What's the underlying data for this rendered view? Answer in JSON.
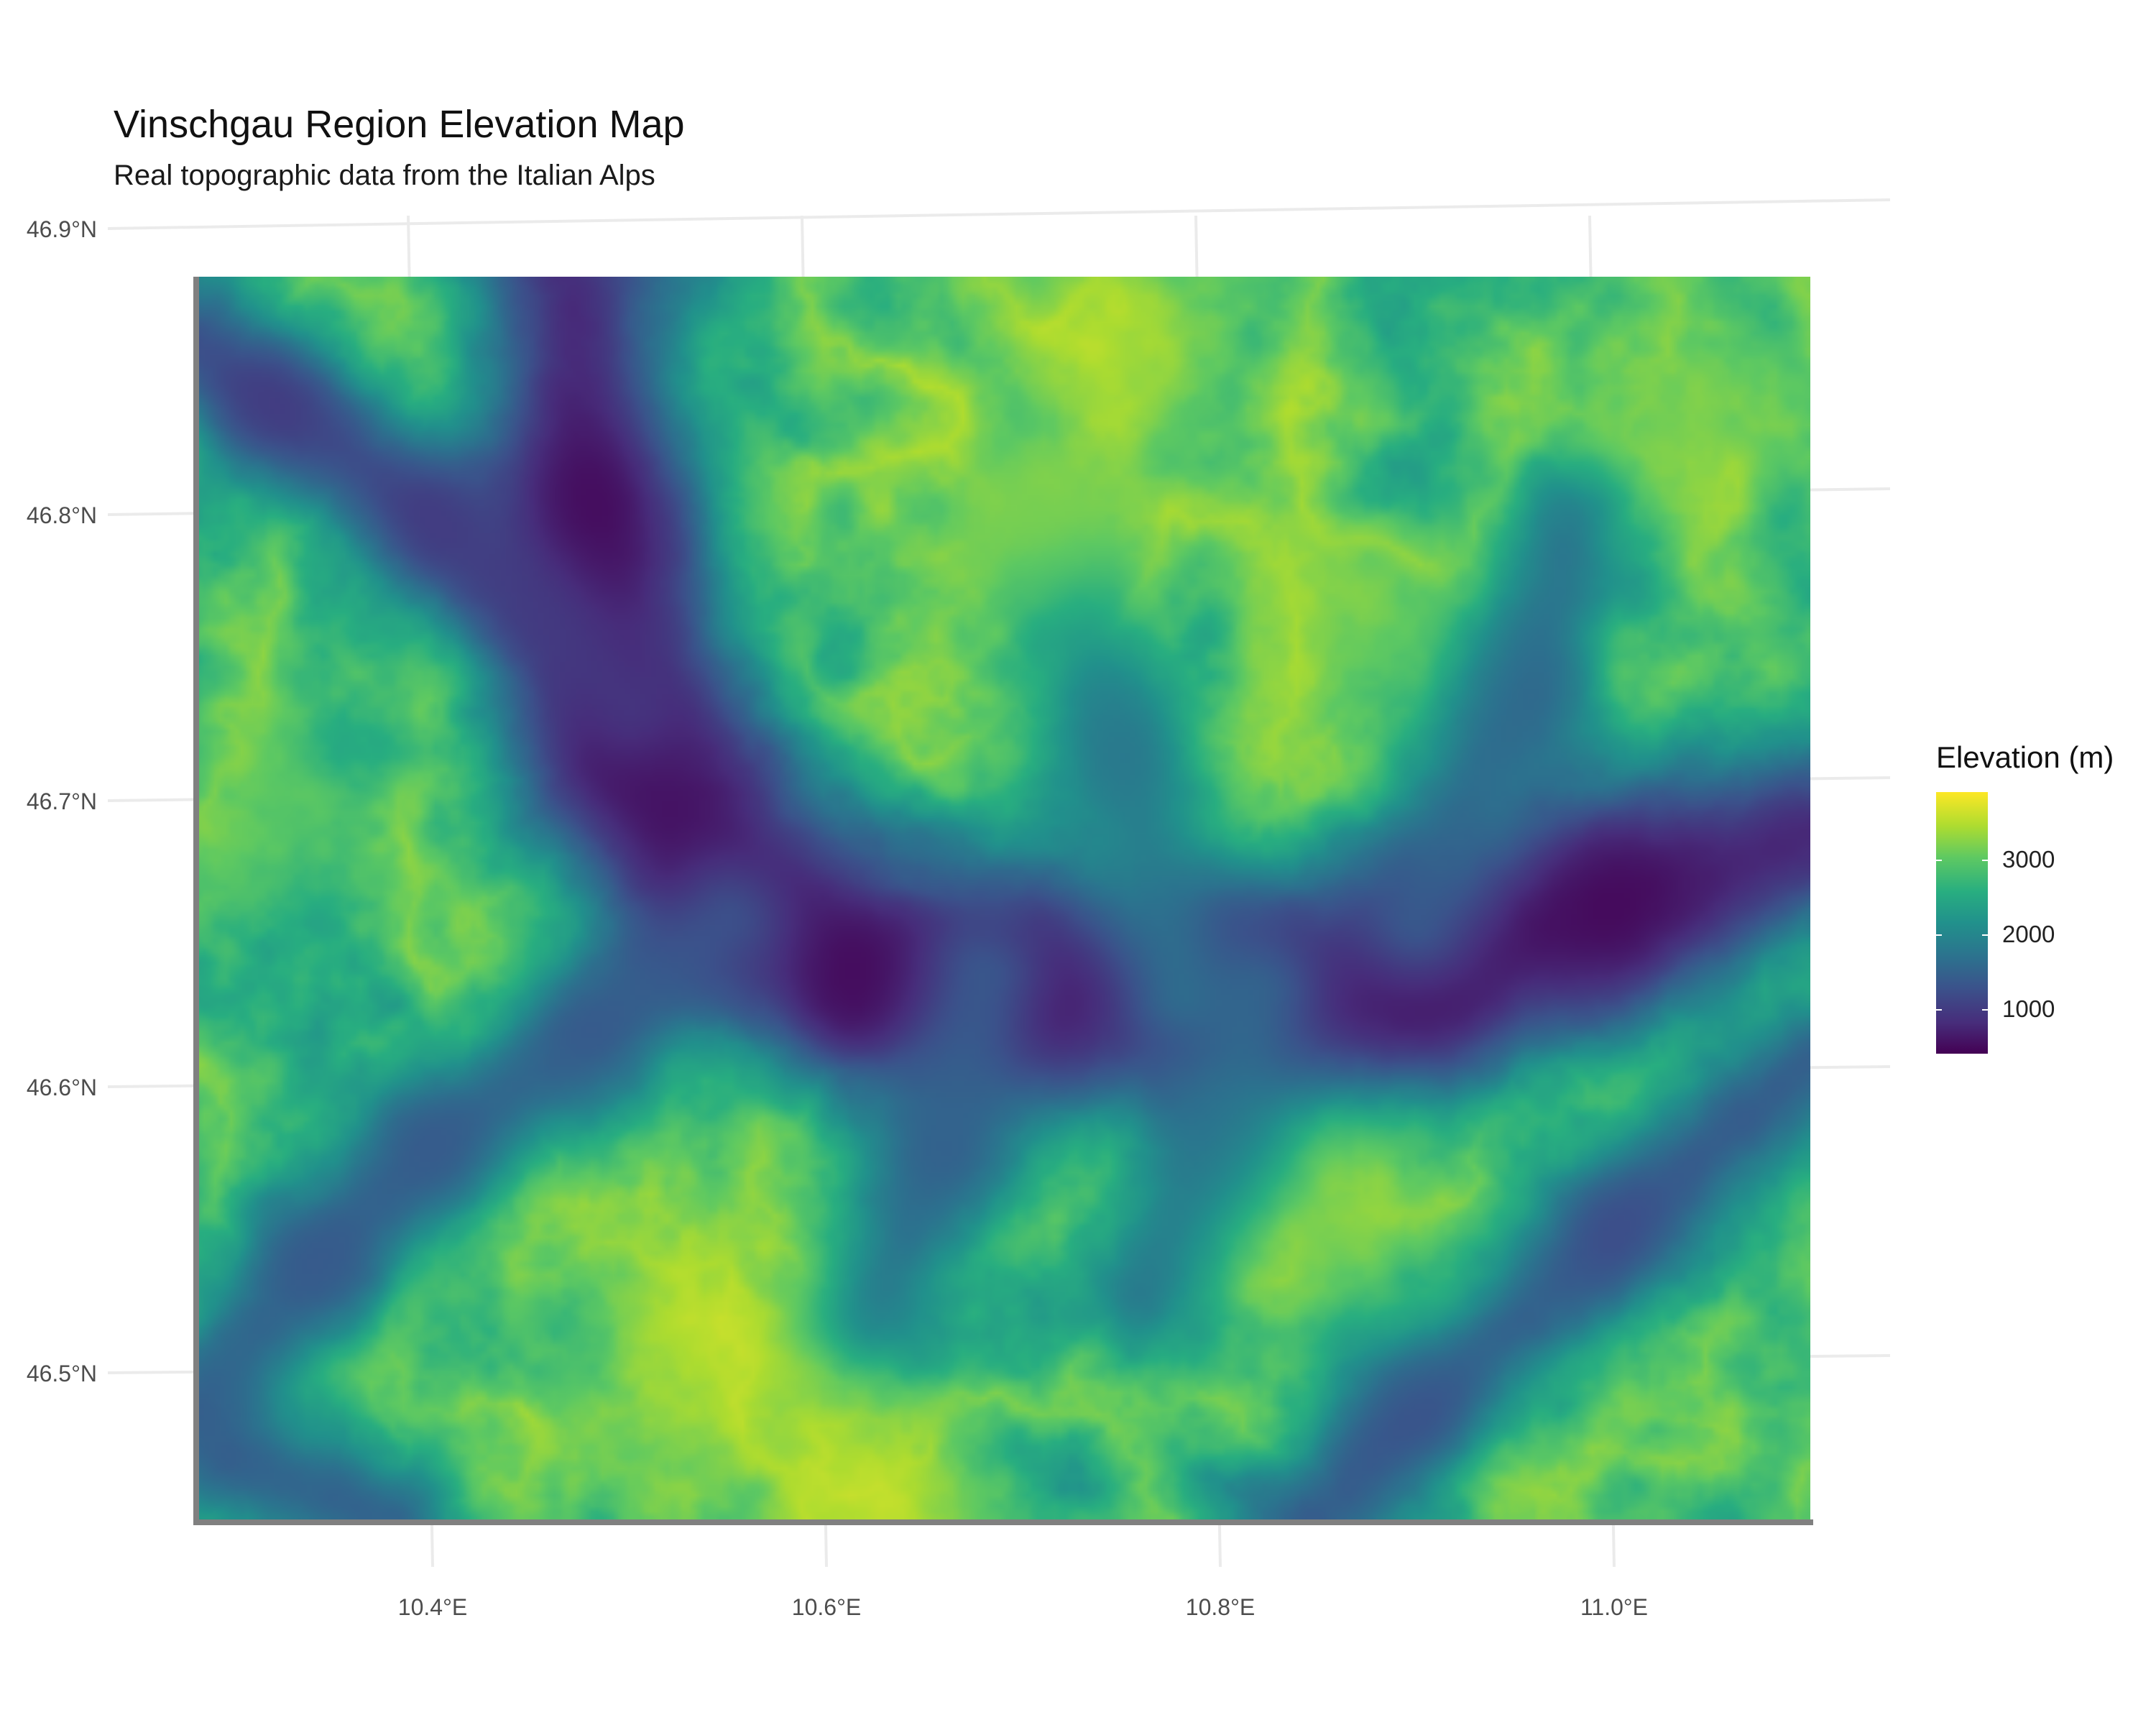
{
  "title": "Vinschgau Region Elevation Map",
  "subtitle": "Real topographic data from the Italian Alps",
  "axes": {
    "x_ticks": [
      "10.4°E",
      "10.6°E",
      "10.8°E",
      "11.0°E"
    ],
    "y_ticks": [
      "46.9°N",
      "46.8°N",
      "46.7°N",
      "46.6°N",
      "46.5°N"
    ],
    "x_range": [
      10.28,
      11.1
    ],
    "y_range": [
      46.45,
      46.885
    ],
    "grid": true
  },
  "legend": {
    "title": "Elevation (m)",
    "placement": "right",
    "labels": [
      "3000",
      "2000",
      "1000"
    ],
    "range": [
      300,
      3900
    ],
    "palette": [
      "#440154",
      "#472d7b",
      "#3b528b",
      "#2c728e",
      "#21918c",
      "#28ae80",
      "#5ec962",
      "#addc30",
      "#fde725"
    ]
  },
  "chart_data": {
    "type": "heatmap",
    "variable": "Elevation (m)",
    "x_range": [
      10.28,
      11.1
    ],
    "y_range": [
      46.45,
      46.885
    ],
    "value_range": [
      300,
      3900
    ],
    "valleys": [
      {
        "path": [
          [
            11.1,
            46.69
          ],
          [
            11.0,
            46.665
          ],
          [
            10.9,
            46.64
          ],
          [
            10.8,
            46.632
          ],
          [
            10.7,
            46.635
          ],
          [
            10.62,
            46.64
          ],
          [
            10.55,
            46.67
          ],
          [
            10.5,
            46.72
          ],
          [
            10.48,
            46.8
          ],
          [
            10.47,
            46.885
          ]
        ],
        "depth": 350
      },
      {
        "path": [
          [
            10.5,
            46.735
          ],
          [
            10.4,
            46.8
          ],
          [
            10.32,
            46.84
          ],
          [
            10.28,
            46.86
          ]
        ],
        "depth": 900
      },
      {
        "path": [
          [
            11.1,
            46.61
          ],
          [
            11.0,
            46.55
          ],
          [
            10.9,
            46.49
          ],
          [
            10.85,
            46.45
          ]
        ],
        "depth": 1100
      },
      {
        "path": [
          [
            10.55,
            46.66
          ],
          [
            10.48,
            46.62
          ],
          [
            10.4,
            46.58
          ],
          [
            10.34,
            46.54
          ],
          [
            10.28,
            46.49
          ]
        ],
        "depth": 1300
      },
      {
        "path": [
          [
            10.68,
            46.64
          ],
          [
            10.66,
            46.58
          ],
          [
            10.62,
            46.52
          ]
        ],
        "depth": 1400
      },
      {
        "path": [
          [
            10.82,
            46.635
          ],
          [
            10.8,
            46.58
          ],
          [
            10.76,
            46.53
          ]
        ],
        "depth": 1500
      },
      {
        "path": [
          [
            10.9,
            46.66
          ],
          [
            10.95,
            46.74
          ],
          [
            10.98,
            46.8
          ]
        ],
        "depth": 1400
      },
      {
        "path": [
          [
            10.78,
            46.635
          ],
          [
            10.75,
            46.72
          ],
          [
            10.71,
            46.8
          ]
        ],
        "depth": 1700
      },
      {
        "path": [
          [
            10.3,
            46.47
          ],
          [
            10.38,
            46.45
          ]
        ],
        "depth": 1200
      }
    ],
    "peaks": [
      {
        "x": 10.71,
        "y": 46.8,
        "elevation": 3900
      },
      {
        "x": 10.75,
        "y": 46.86,
        "elevation": 3800
      },
      {
        "x": 10.54,
        "y": 46.51,
        "elevation": 3900
      },
      {
        "x": 10.62,
        "y": 46.455,
        "elevation": 3900
      },
      {
        "x": 10.87,
        "y": 46.77,
        "elevation": 3600
      },
      {
        "x": 10.86,
        "y": 46.55,
        "elevation": 3500
      },
      {
        "x": 10.32,
        "y": 46.7,
        "elevation": 3300
      },
      {
        "x": 11.05,
        "y": 46.83,
        "elevation": 3400
      }
    ]
  }
}
